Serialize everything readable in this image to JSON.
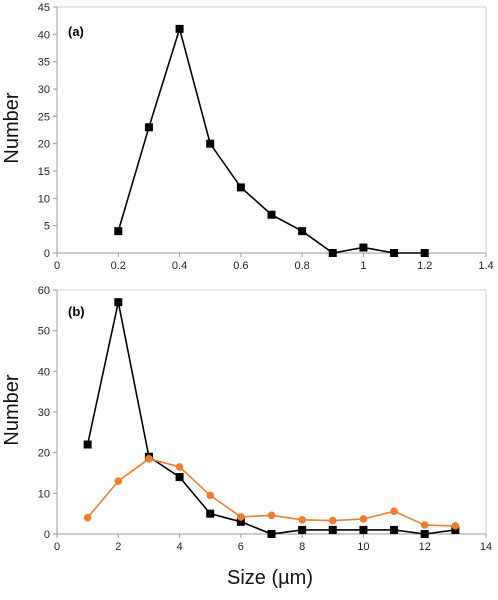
{
  "chart_data": [
    {
      "type": "line",
      "panel_label": "(a)",
      "xlabel": "",
      "ylabel": "Number",
      "xlim": [
        0,
        1.4
      ],
      "ylim": [
        0,
        45
      ],
      "xticks": [
        0,
        0.2,
        0.4,
        0.6,
        0.8,
        1,
        1.2,
        1.4
      ],
      "yticks": [
        0,
        5,
        10,
        15,
        20,
        25,
        30,
        35,
        40,
        45
      ],
      "grid": false,
      "series": [
        {
          "color": "#000000",
          "marker": "square",
          "x": [
            0.2,
            0.3,
            0.4,
            0.5,
            0.6,
            0.7,
            0.8,
            0.9,
            1.0,
            1.1,
            1.2
          ],
          "y": [
            4,
            23,
            41,
            20,
            12,
            7,
            4,
            0,
            1,
            0,
            0
          ]
        }
      ]
    },
    {
      "type": "line",
      "panel_label": "(b)",
      "xlabel": "Size (µm)",
      "ylabel": "Number",
      "xlim": [
        0,
        14
      ],
      "ylim": [
        0,
        60
      ],
      "xticks": [
        0,
        2,
        4,
        6,
        8,
        10,
        12,
        14
      ],
      "yticks": [
        0,
        10,
        20,
        30,
        40,
        50,
        60
      ],
      "grid": false,
      "series": [
        {
          "color": "#000000",
          "marker": "square",
          "x": [
            1,
            2,
            3,
            4,
            5,
            6,
            7,
            8,
            9,
            10,
            11,
            12,
            13
          ],
          "y": [
            22,
            57,
            19,
            14,
            5,
            3,
            0,
            1,
            1,
            1,
            1,
            0,
            1
          ]
        },
        {
          "color": "#ED7D31",
          "marker": "circle",
          "x": [
            1,
            2,
            3,
            4,
            5,
            6,
            7,
            8,
            9,
            10,
            11,
            12,
            13
          ],
          "y": [
            4,
            13,
            18.5,
            16.5,
            9.5,
            4.2,
            4.6,
            3.5,
            3.3,
            3.7,
            5.6,
            2.2,
            2
          ]
        }
      ]
    }
  ]
}
